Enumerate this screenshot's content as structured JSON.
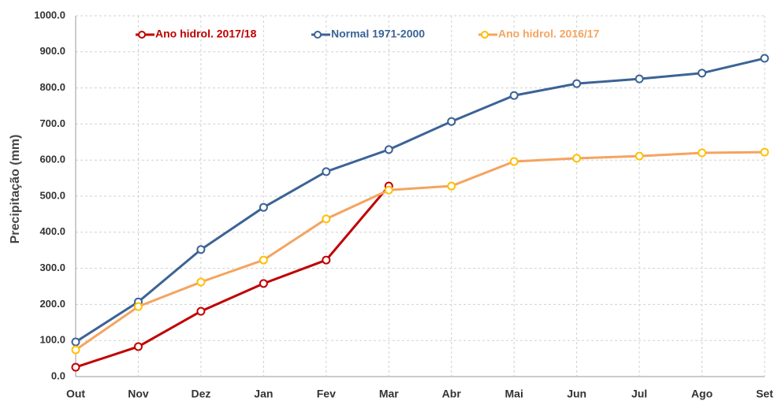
{
  "chart_data": {
    "type": "line",
    "y_label": "Precipitação (mm)",
    "categories": [
      "Out",
      "Nov",
      "Dez",
      "Jan",
      "Fev",
      "Mar",
      "Abr",
      "Mai",
      "Jun",
      "Jul",
      "Ago",
      "Set"
    ],
    "series": [
      {
        "name": "Ano hidrol. 2017/18",
        "color": "#c00000",
        "marker_color": "#c00000",
        "values": [
          26,
          83,
          181,
          258,
          323,
          528,
          null,
          null,
          null,
          null,
          null,
          null
        ]
      },
      {
        "name": "Normal 1971-2000",
        "color": "#3b6396",
        "marker_color": "#3b6396",
        "values": [
          96,
          207,
          352,
          469,
          568,
          629,
          707,
          779,
          812,
          825,
          841,
          882
        ]
      },
      {
        "name": "Ano hidrol. 2016/17",
        "color": "#f4a460",
        "marker_color": "#ffc000",
        "values": [
          74,
          194,
          262,
          323,
          437,
          517,
          528,
          596,
          605,
          611,
          620,
          622
        ]
      }
    ],
    "ylim": [
      0,
      1000
    ],
    "yticks": [
      {
        "value": 0,
        "label": "0.0"
      },
      {
        "value": 100,
        "label": "100.0"
      },
      {
        "value": 200,
        "label": "200.0"
      },
      {
        "value": 300,
        "label": "300.0"
      },
      {
        "value": 400,
        "label": "400.0"
      },
      {
        "value": 500,
        "label": "500.0"
      },
      {
        "value": 600,
        "label": "600.0"
      },
      {
        "value": 700,
        "label": "700.0"
      },
      {
        "value": 800,
        "label": "800.0"
      },
      {
        "value": 900,
        "label": "900.0"
      },
      {
        "value": 1000,
        "label": "1000.0"
      }
    ],
    "grid": true
  }
}
